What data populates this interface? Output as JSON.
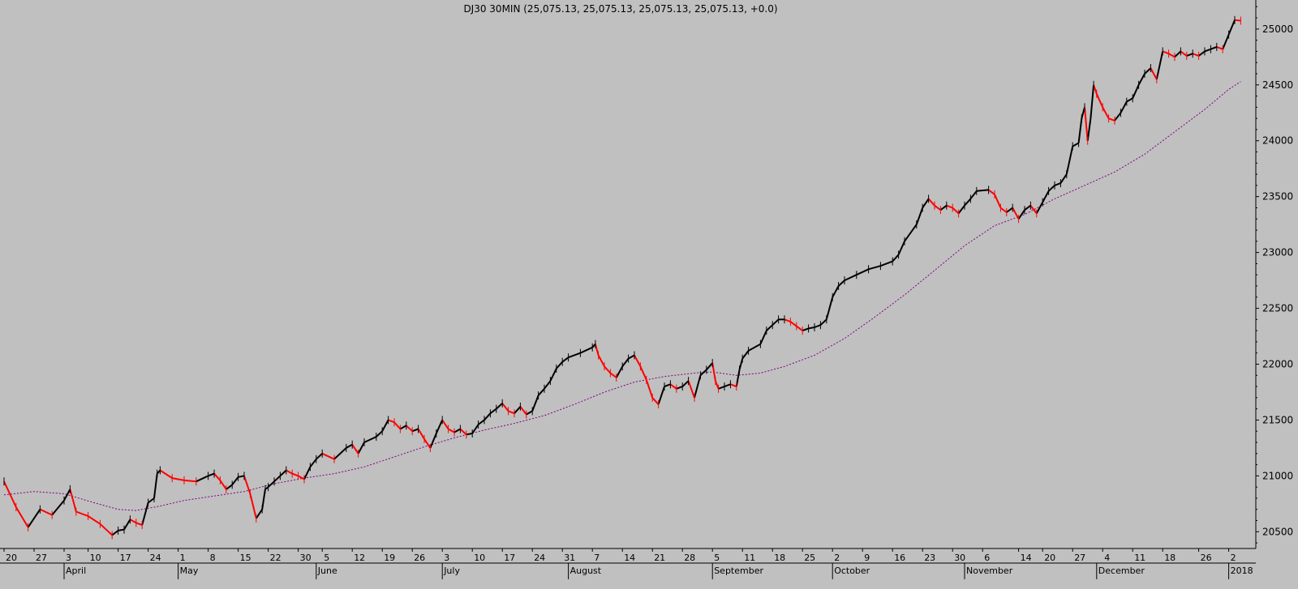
{
  "chart_data": {
    "type": "line",
    "title": "DJ30 30MIN (25,075.13, 25,075.13, 25,075.13, 25,075.13, +0.0)",
    "ylabel": "",
    "xlabel": "",
    "ylim": [
      20350,
      25260
    ],
    "y_ticks": [
      20500,
      21000,
      21500,
      22000,
      22500,
      23000,
      23500,
      24000,
      24500,
      25000
    ],
    "grid": false,
    "colors": {
      "background": "#c0c0c0",
      "up_bar": "#000000",
      "down_bar": "#ff0000",
      "moving_average": "#800080"
    },
    "x_day_labels": [
      "20",
      "27",
      "3",
      "10",
      "17",
      "24",
      "1",
      "8",
      "15",
      "22",
      "30",
      "5",
      "12",
      "19",
      "26",
      "3",
      "10",
      "17",
      "24",
      "31",
      "7",
      "14",
      "21",
      "28",
      "5",
      "11",
      "18",
      "25",
      "2",
      "9",
      "16",
      "23",
      "30",
      "6",
      "14",
      "20",
      "27",
      "4",
      "11",
      "18",
      "26",
      "2"
    ],
    "x_day_index": [
      0,
      5,
      10,
      14,
      19,
      24,
      29,
      34,
      39,
      44,
      49,
      53,
      58,
      63,
      68,
      73,
      78,
      83,
      88,
      93,
      98,
      103,
      108,
      113,
      118,
      123,
      128,
      133,
      138,
      143,
      148,
      153,
      158,
      163,
      169,
      173,
      178,
      183,
      188,
      193,
      199,
      204
    ],
    "x_month_labels": [
      "April",
      "May",
      "June",
      "July",
      "August",
      "September",
      "October",
      "November",
      "December",
      "2018"
    ],
    "x_month_index": [
      10,
      29,
      52,
      73,
      94,
      118,
      138,
      160,
      182,
      204
    ],
    "num_days": 209,
    "series": [
      {
        "kind": "price",
        "points": [
          [
            0,
            20950
          ],
          [
            2,
            20720
          ],
          [
            4,
            20540
          ],
          [
            6,
            20700
          ],
          [
            8,
            20650
          ],
          [
            10,
            20780
          ],
          [
            11,
            20880
          ],
          [
            12,
            20680
          ],
          [
            14,
            20640
          ],
          [
            16,
            20570
          ],
          [
            18,
            20470
          ],
          [
            19,
            20510
          ],
          [
            20,
            20520
          ],
          [
            21,
            20610
          ],
          [
            22,
            20580
          ],
          [
            23,
            20560
          ],
          [
            24,
            20760
          ],
          [
            25,
            20800
          ],
          [
            25.5,
            21020
          ],
          [
            26,
            21050
          ],
          [
            28,
            20980
          ],
          [
            30,
            20960
          ],
          [
            32,
            20950
          ],
          [
            34,
            21000
          ],
          [
            35,
            21020
          ],
          [
            36,
            20960
          ],
          [
            37,
            20880
          ],
          [
            38,
            20920
          ],
          [
            39,
            20990
          ],
          [
            40,
            21000
          ],
          [
            41,
            20840
          ],
          [
            42,
            20620
          ],
          [
            43,
            20700
          ],
          [
            43.5,
            20880
          ],
          [
            44,
            20900
          ],
          [
            45,
            20950
          ],
          [
            46,
            21000
          ],
          [
            47,
            21050
          ],
          [
            48,
            21020
          ],
          [
            49,
            21000
          ],
          [
            50,
            20970
          ],
          [
            51,
            21080
          ],
          [
            52,
            21150
          ],
          [
            53,
            21200
          ],
          [
            55,
            21150
          ],
          [
            57,
            21250
          ],
          [
            58,
            21280
          ],
          [
            59,
            21200
          ],
          [
            60,
            21300
          ],
          [
            62,
            21350
          ],
          [
            63,
            21400
          ],
          [
            64,
            21500
          ],
          [
            65,
            21480
          ],
          [
            66,
            21420
          ],
          [
            67,
            21450
          ],
          [
            68,
            21400
          ],
          [
            69,
            21420
          ],
          [
            70,
            21330
          ],
          [
            71,
            21250
          ],
          [
            72,
            21380
          ],
          [
            73,
            21500
          ],
          [
            74,
            21420
          ],
          [
            75,
            21390
          ],
          [
            76,
            21420
          ],
          [
            77,
            21370
          ],
          [
            78,
            21380
          ],
          [
            79,
            21460
          ],
          [
            80,
            21500
          ],
          [
            81,
            21560
          ],
          [
            82,
            21600
          ],
          [
            83,
            21650
          ],
          [
            84,
            21580
          ],
          [
            85,
            21560
          ],
          [
            86,
            21620
          ],
          [
            87,
            21550
          ],
          [
            88,
            21580
          ],
          [
            89,
            21720
          ],
          [
            90,
            21780
          ],
          [
            91,
            21850
          ],
          [
            92,
            21960
          ],
          [
            93,
            22020
          ],
          [
            94,
            22060
          ],
          [
            96,
            22100
          ],
          [
            98,
            22150
          ],
          [
            98.5,
            22180
          ],
          [
            99,
            22080
          ],
          [
            100,
            21980
          ],
          [
            101,
            21920
          ],
          [
            102,
            21880
          ],
          [
            103,
            21980
          ],
          [
            104,
            22050
          ],
          [
            105,
            22080
          ],
          [
            106,
            21980
          ],
          [
            107,
            21860
          ],
          [
            108,
            21700
          ],
          [
            109,
            21640
          ],
          [
            110,
            21800
          ],
          [
            111,
            21820
          ],
          [
            112,
            21780
          ],
          [
            113,
            21800
          ],
          [
            114,
            21850
          ],
          [
            115,
            21700
          ],
          [
            116,
            21900
          ],
          [
            117,
            21950
          ],
          [
            118,
            22010
          ],
          [
            118.5,
            21850
          ],
          [
            119,
            21780
          ],
          [
            120,
            21800
          ],
          [
            121,
            21820
          ],
          [
            122,
            21800
          ],
          [
            122.5,
            21950
          ],
          [
            123,
            22050
          ],
          [
            124,
            22120
          ],
          [
            126,
            22180
          ],
          [
            127,
            22300
          ],
          [
            128,
            22350
          ],
          [
            129,
            22400
          ],
          [
            130,
            22400
          ],
          [
            131,
            22380
          ],
          [
            132,
            22340
          ],
          [
            133,
            22300
          ],
          [
            134,
            22320
          ],
          [
            135,
            22330
          ],
          [
            136,
            22350
          ],
          [
            137,
            22400
          ],
          [
            138,
            22600
          ],
          [
            139,
            22700
          ],
          [
            140,
            22750
          ],
          [
            142,
            22800
          ],
          [
            144,
            22850
          ],
          [
            146,
            22880
          ],
          [
            148,
            22920
          ],
          [
            149,
            22980
          ],
          [
            150,
            23100
          ],
          [
            152,
            23250
          ],
          [
            153,
            23400
          ],
          [
            154,
            23480
          ],
          [
            155,
            23420
          ],
          [
            156,
            23380
          ],
          [
            157,
            23420
          ],
          [
            158,
            23400
          ],
          [
            159,
            23350
          ],
          [
            160,
            23420
          ],
          [
            161,
            23480
          ],
          [
            162,
            23550
          ],
          [
            164,
            23560
          ],
          [
            165,
            23520
          ],
          [
            166,
            23400
          ],
          [
            167,
            23360
          ],
          [
            168,
            23400
          ],
          [
            169,
            23300
          ],
          [
            170,
            23380
          ],
          [
            171,
            23420
          ],
          [
            172,
            23350
          ],
          [
            173,
            23450
          ],
          [
            174,
            23550
          ],
          [
            175,
            23600
          ],
          [
            176,
            23620
          ],
          [
            177,
            23700
          ],
          [
            178,
            23950
          ],
          [
            179,
            23980
          ],
          [
            179.5,
            24200
          ],
          [
            180,
            24300
          ],
          [
            180.5,
            24000
          ],
          [
            181,
            24200
          ],
          [
            181.5,
            24500
          ],
          [
            182,
            24420
          ],
          [
            183,
            24300
          ],
          [
            184,
            24200
          ],
          [
            185,
            24180
          ],
          [
            186,
            24250
          ],
          [
            187,
            24350
          ],
          [
            188,
            24380
          ],
          [
            189,
            24500
          ],
          [
            190,
            24600
          ],
          [
            191,
            24650
          ],
          [
            192,
            24550
          ],
          [
            193,
            24800
          ],
          [
            194,
            24780
          ],
          [
            195,
            24750
          ],
          [
            196,
            24800
          ],
          [
            197,
            24760
          ],
          [
            198,
            24780
          ],
          [
            199,
            24760
          ],
          [
            200,
            24800
          ],
          [
            201,
            24820
          ],
          [
            202,
            24840
          ],
          [
            203,
            24820
          ],
          [
            204,
            24950
          ],
          [
            205,
            25080
          ],
          [
            206,
            25075.13
          ]
        ]
      },
      {
        "kind": "moving_average",
        "points": [
          [
            0,
            20830
          ],
          [
            5,
            20860
          ],
          [
            10,
            20840
          ],
          [
            15,
            20760
          ],
          [
            19,
            20700
          ],
          [
            22,
            20690
          ],
          [
            26,
            20730
          ],
          [
            30,
            20780
          ],
          [
            35,
            20820
          ],
          [
            40,
            20860
          ],
          [
            45,
            20930
          ],
          [
            50,
            20980
          ],
          [
            55,
            21020
          ],
          [
            60,
            21080
          ],
          [
            65,
            21170
          ],
          [
            70,
            21260
          ],
          [
            75,
            21340
          ],
          [
            80,
            21410
          ],
          [
            85,
            21470
          ],
          [
            90,
            21540
          ],
          [
            95,
            21640
          ],
          [
            100,
            21750
          ],
          [
            105,
            21840
          ],
          [
            110,
            21890
          ],
          [
            115,
            21920
          ],
          [
            118,
            21930
          ],
          [
            122,
            21900
          ],
          [
            126,
            21920
          ],
          [
            130,
            21980
          ],
          [
            135,
            22080
          ],
          [
            140,
            22230
          ],
          [
            145,
            22420
          ],
          [
            150,
            22620
          ],
          [
            155,
            22840
          ],
          [
            160,
            23060
          ],
          [
            165,
            23240
          ],
          [
            170,
            23340
          ],
          [
            175,
            23480
          ],
          [
            180,
            23600
          ],
          [
            185,
            23720
          ],
          [
            190,
            23880
          ],
          [
            195,
            24080
          ],
          [
            200,
            24280
          ],
          [
            204,
            24460
          ],
          [
            206,
            24530
          ]
        ]
      }
    ]
  }
}
